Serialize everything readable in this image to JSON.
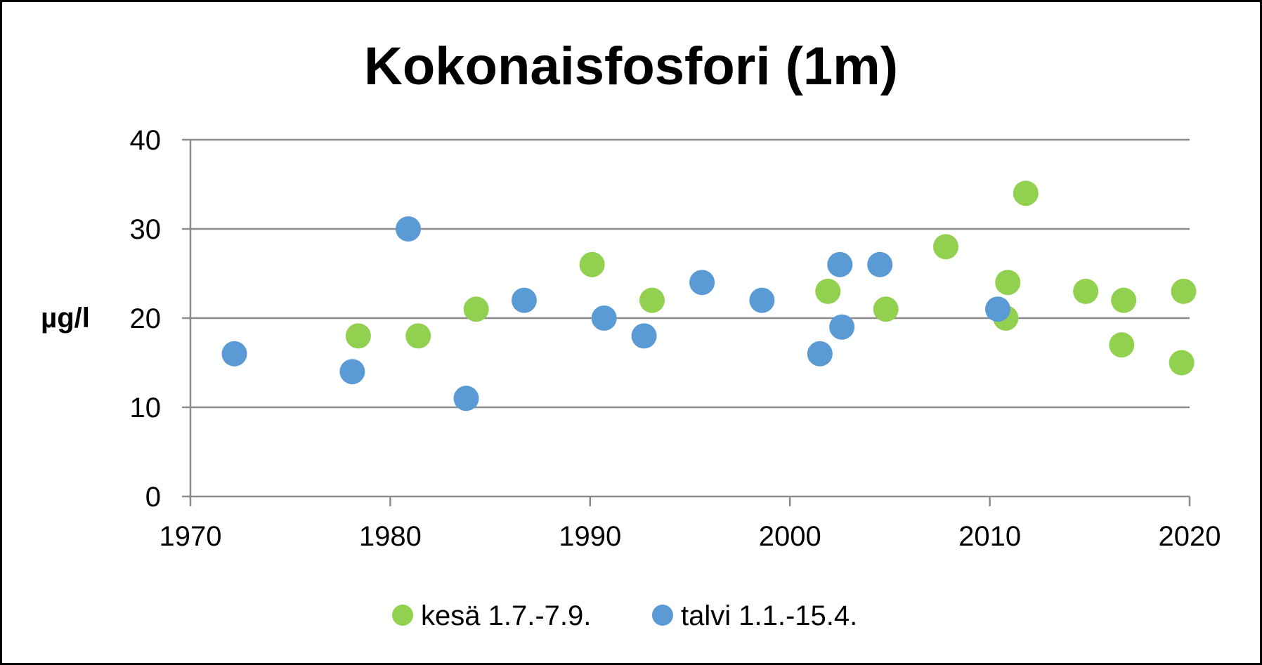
{
  "chart_data": {
    "type": "scatter",
    "title": "Kokonaisfosfori (1m)",
    "xlabel": "",
    "ylabel": "µg/l",
    "xlim": [
      1970,
      2020
    ],
    "ylim": [
      0,
      40
    ],
    "xticks": [
      1970,
      1980,
      1990,
      2000,
      2010,
      2020
    ],
    "yticks": [
      0,
      10,
      20,
      30,
      40
    ],
    "grid": "horizontal",
    "legend_position": "bottom",
    "series": [
      {
        "name": "kesä 1.7.-7.9.",
        "color": "#92d050",
        "points": [
          [
            1978.4,
            18
          ],
          [
            1981.4,
            18
          ],
          [
            1984.3,
            21
          ],
          [
            1990.1,
            26
          ],
          [
            1993.1,
            22
          ],
          [
            2001.9,
            23
          ],
          [
            2004.8,
            21
          ],
          [
            2007.8,
            28
          ],
          [
            2010.8,
            20
          ],
          [
            2010.9,
            24
          ],
          [
            2011.8,
            34
          ],
          [
            2014.8,
            23
          ],
          [
            2016.6,
            17
          ],
          [
            2016.7,
            22
          ],
          [
            2019.6,
            15
          ],
          [
            2019.7,
            23
          ]
        ]
      },
      {
        "name": "talvi 1.1.-15.4.",
        "color": "#5b9bd5",
        "points": [
          [
            1972.2,
            16
          ],
          [
            1978.1,
            14
          ],
          [
            1980.9,
            30
          ],
          [
            1983.8,
            11
          ],
          [
            1986.7,
            22
          ],
          [
            1990.7,
            20
          ],
          [
            1992.7,
            18
          ],
          [
            1995.6,
            24
          ],
          [
            1998.6,
            22
          ],
          [
            2001.5,
            16
          ],
          [
            2002.5,
            26
          ],
          [
            2002.6,
            19
          ],
          [
            2004.5,
            26
          ],
          [
            2010.4,
            21
          ]
        ]
      }
    ]
  }
}
